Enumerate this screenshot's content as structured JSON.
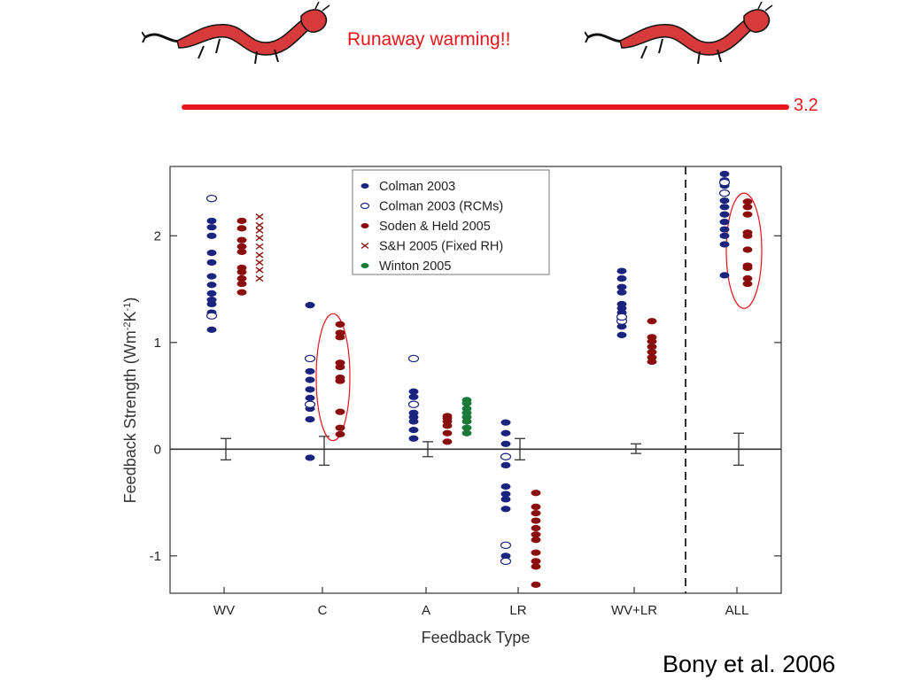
{
  "slide": {
    "title": "Runaway warming!!",
    "line_value": "3.2",
    "citation": "Bony et al. 2006",
    "title_color": "#e8141b",
    "decorations": [
      "dragon-left",
      "dragon-right"
    ]
  },
  "chart_data": {
    "type": "scatter",
    "categories": [
      "WV",
      "C",
      "A",
      "LR",
      "WV+LR",
      "ALL"
    ],
    "xlabel": "Feedback Type",
    "ylabel_main": "Feedback Strength (Wm",
    "ylabel_sup1": "-2",
    "ylabel_mid": "K",
    "ylabel_sup2": "-1",
    "ylabel_end": ")",
    "ylim": [
      -1.35,
      2.65
    ],
    "yticks": [
      -1,
      0,
      1,
      2
    ],
    "legend_position": "top-center",
    "zero_line": true,
    "divider_before": "ALL",
    "series": [
      {
        "name": "Colman 2003",
        "color": "#1a237e",
        "marker": "filled-ellipse",
        "points": {
          "WV": [
            1.12,
            1.28,
            1.36,
            1.4,
            1.46,
            1.54,
            1.62,
            1.75,
            1.84,
            2.0,
            2.08,
            2.14
          ],
          "C": [
            -0.08,
            0.28,
            0.38,
            0.48,
            0.56,
            0.65,
            0.73,
            1.35
          ],
          "A": [
            0.1,
            0.18,
            0.26,
            0.3,
            0.34,
            0.42,
            0.49,
            0.54
          ],
          "LR": [
            -1.0,
            -0.56,
            -0.47,
            -0.42,
            -0.35,
            -0.15,
            0.05,
            0.15,
            0.25
          ],
          "WV+LR": [
            1.07,
            1.15,
            1.22,
            1.28,
            1.32,
            1.36,
            1.47,
            1.52,
            1.6,
            1.67
          ],
          "ALL": [
            1.63,
            1.92,
            2.0,
            2.06,
            2.13,
            2.2,
            2.27,
            2.33,
            2.4,
            2.47,
            2.52,
            2.58
          ]
        }
      },
      {
        "name": "Colman 2003 (RCMs)",
        "color": "#1a237e",
        "marker": "open-ellipse",
        "points": {
          "WV": [
            1.25,
            2.35
          ],
          "C": [
            0.42,
            0.85
          ],
          "A": [
            0.42,
            0.85
          ],
          "LR": [
            -1.05,
            -0.9,
            -0.07
          ],
          "WV+LR": [
            1.2,
            1.24
          ],
          "ALL": [
            2.4,
            2.5
          ]
        }
      },
      {
        "name": "Soden & Held 2005",
        "color": "#8b0e0e",
        "marker": "filled-ellipse",
        "points": {
          "WV": [
            1.47,
            1.55,
            1.6,
            1.66,
            1.7,
            1.85,
            1.9,
            1.96,
            2.07,
            2.14
          ],
          "C": [
            0.14,
            0.2,
            0.35,
            0.64,
            0.67,
            0.77,
            0.81,
            1.05,
            1.09,
            1.17
          ],
          "A": [
            0.07,
            0.15,
            0.22,
            0.26,
            0.29,
            0.31
          ],
          "LR": [
            -1.27,
            -1.1,
            -1.05,
            -0.97,
            -0.85,
            -0.8,
            -0.74,
            -0.67,
            -0.6,
            -0.54,
            -0.41
          ],
          "WV+LR": [
            0.82,
            0.86,
            0.91,
            0.96,
            1.01,
            1.05,
            1.2
          ],
          "ALL": [
            1.55,
            1.6,
            1.7,
            1.72,
            1.87,
            2.0,
            2.03,
            2.2,
            2.27,
            2.32
          ]
        }
      },
      {
        "name": "S&H 2005 (Fixed RH)",
        "color": "#8b0e0e",
        "marker": "x",
        "points": {
          "WV": [
            1.6,
            1.68,
            1.75,
            1.82,
            1.9,
            1.98,
            2.05,
            2.1,
            2.18
          ]
        }
      },
      {
        "name": "Winton 2005",
        "color": "#1b7a3a",
        "marker": "filled-ellipse",
        "points": {
          "A": [
            0.15,
            0.2,
            0.26,
            0.3,
            0.34,
            0.38,
            0.43,
            0.46
          ]
        }
      }
    ],
    "error_bars": {
      "WV": [
        -0.1,
        0.1
      ],
      "C": [
        -0.15,
        0.12
      ],
      "A": [
        -0.07,
        0.07
      ],
      "LR": [
        -0.1,
        0.1
      ],
      "WV+LR": [
        -0.04,
        0.05
      ],
      "ALL": [
        -0.15,
        0.15
      ]
    },
    "highlight_ellipses": [
      "C",
      "ALL"
    ],
    "highlight_color": "#e8141b"
  }
}
